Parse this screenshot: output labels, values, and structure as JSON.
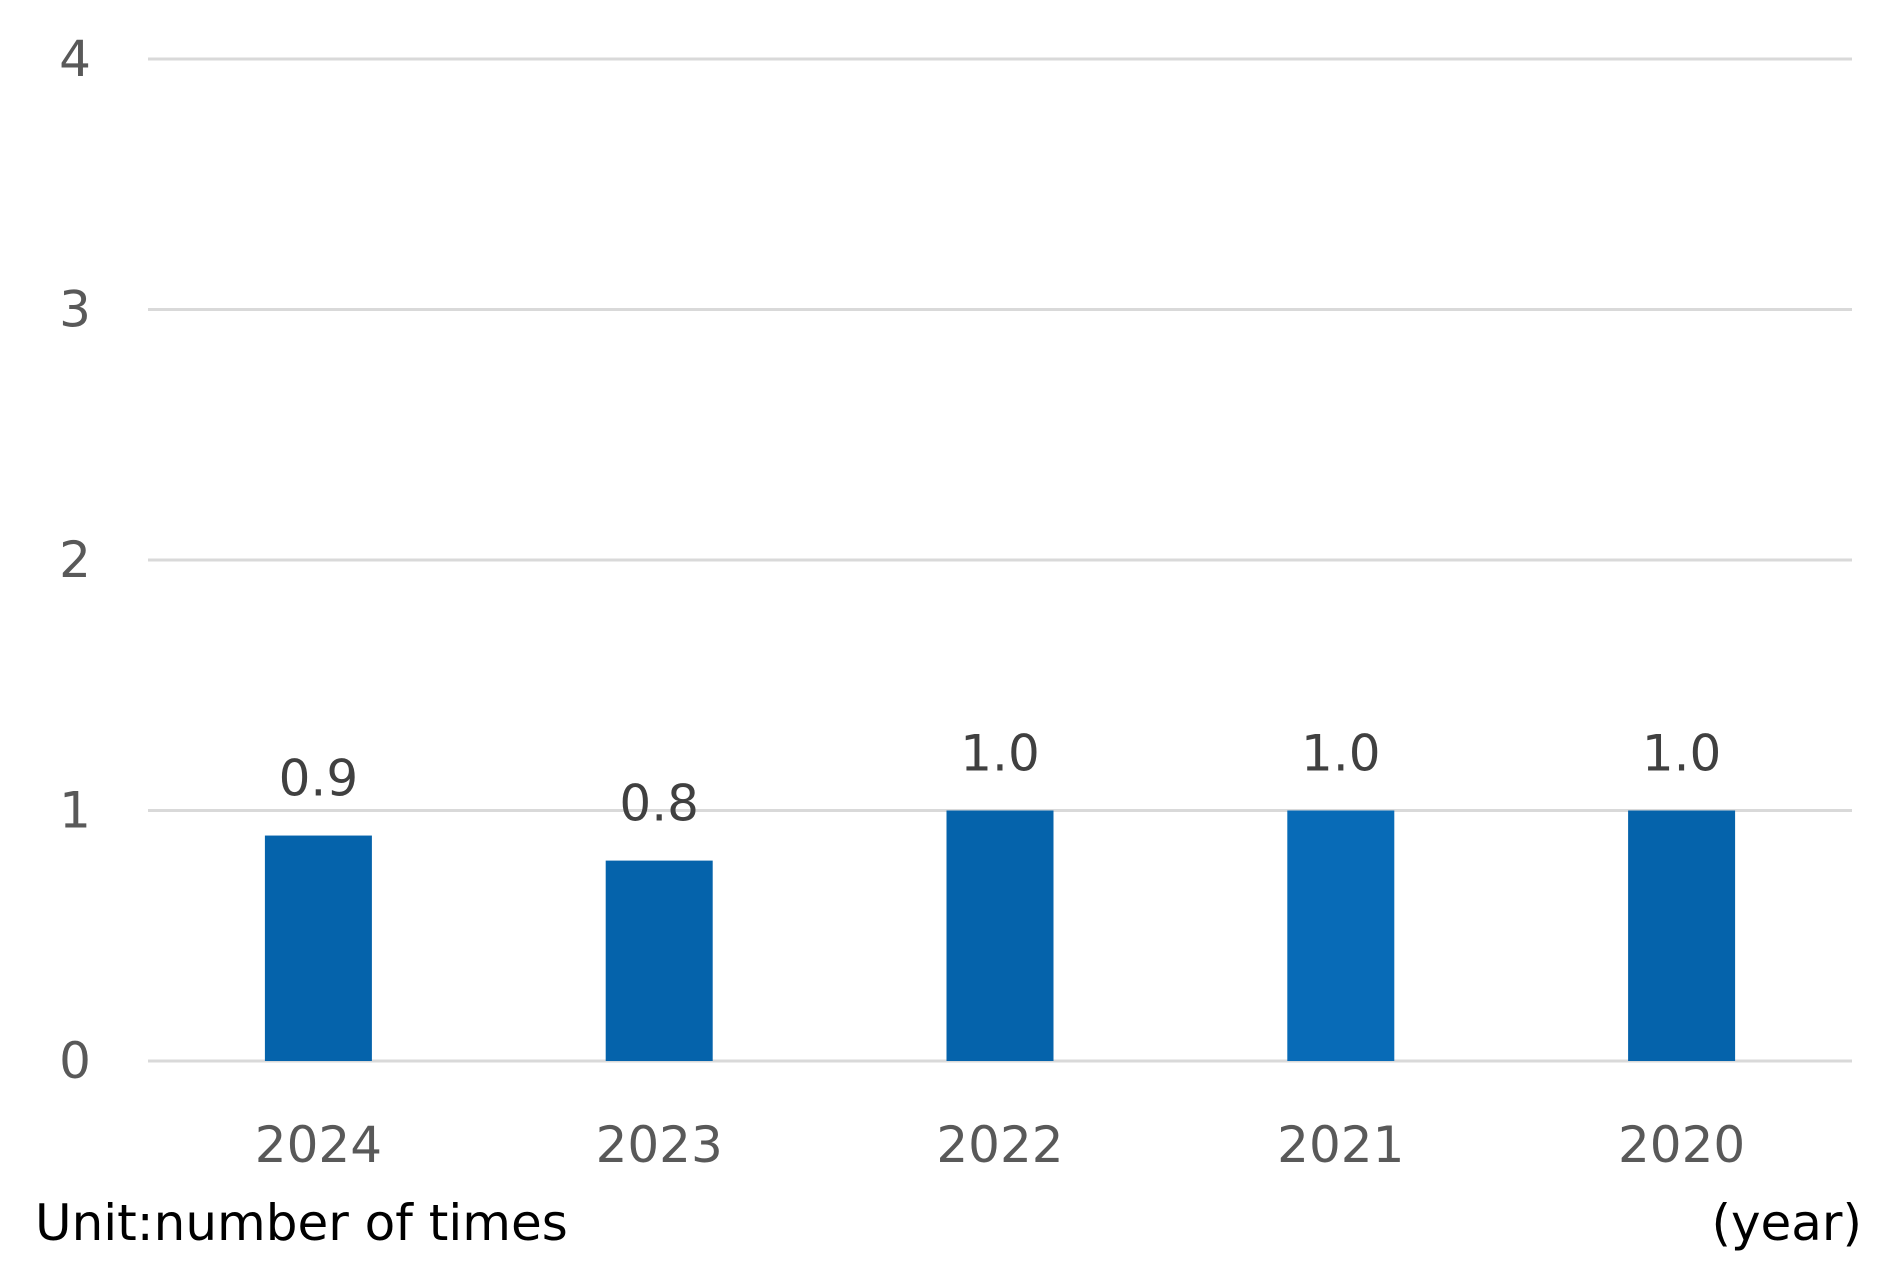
{
  "chart_data": {
    "type": "bar",
    "categories": [
      "2024",
      "2023",
      "2022",
      "2021",
      "2020"
    ],
    "values": [
      0.9,
      0.8,
      1.0,
      1.0,
      1.0
    ],
    "value_labels": [
      "0.9",
      "0.8",
      "1.0",
      "1.0",
      "1.0"
    ],
    "ylim": [
      0,
      4
    ],
    "y_ticks": [
      "0",
      "1",
      "2",
      "3",
      "4"
    ],
    "grid": true,
    "unit_label": "Unit:number of times",
    "xlabel": "(year)",
    "colors": {
      "bars": [
        "#0563AB",
        "#0563AB",
        "#0563AB",
        "#086BB7",
        "#0563AB"
      ],
      "gridline": "#D9D9D9"
    }
  }
}
